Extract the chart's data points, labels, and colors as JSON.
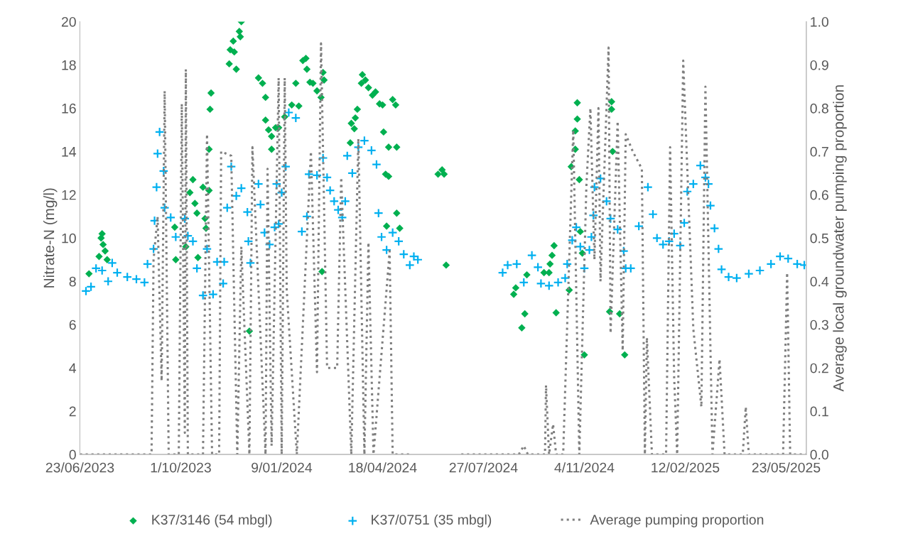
{
  "chart_data": {
    "type": "scatter",
    "ylabel": "Nitrate-N (mg/l)",
    "y2label": "Average local groundwater pumping proportion",
    "xlim": [
      "2023-06-23",
      "2025-06-12"
    ],
    "xticks": [
      {
        "value": "2023-06-23",
        "label": "23/06/2023"
      },
      {
        "value": "2023-10-01",
        "label": "1/10/2023"
      },
      {
        "value": "2024-01-09",
        "label": "9/01/2024"
      },
      {
        "value": "2024-04-18",
        "label": "18/04/2024"
      },
      {
        "value": "2024-07-27",
        "label": "27/07/2024"
      },
      {
        "value": "2024-11-04",
        "label": "4/11/2024"
      },
      {
        "value": "2025-02-12",
        "label": "12/02/2025"
      },
      {
        "value": "2025-05-23",
        "label": "23/05/2025"
      }
    ],
    "ylim": [
      0,
      20
    ],
    "yticks": [
      0,
      2,
      4,
      6,
      8,
      10,
      12,
      14,
      16,
      18,
      20
    ],
    "y2lim": [
      0,
      1
    ],
    "y2ticks": [
      {
        "value": 0,
        "label": "0.0"
      },
      {
        "value": 0.1,
        "label": "0.1"
      },
      {
        "value": 0.2,
        "label": "0.2"
      },
      {
        "value": 0.3,
        "label": "0.3"
      },
      {
        "value": 0.4,
        "label": "0.4"
      },
      {
        "value": 0.5,
        "label": "0.5"
      },
      {
        "value": 0.6,
        "label": "0.6"
      },
      {
        "value": 0.7,
        "label": "0.7"
      },
      {
        "value": 0.8,
        "label": "0.8"
      },
      {
        "value": 0.9,
        "label": "0.9"
      },
      {
        "value": 1.0,
        "label": "1.0"
      }
    ],
    "grid": false,
    "legend": "bottom",
    "series": [
      {
        "name": "K37/3146 (54 mbgl)",
        "marker": "diamond",
        "color": "#00b050",
        "x": [
          "2023-07-02",
          "2023-07-12",
          "2023-07-14",
          "2023-07-15",
          "2023-07-16",
          "2023-07-18",
          "2023-07-20",
          "2023-09-25",
          "2023-09-26",
          "2023-10-06",
          "2023-10-10",
          "2023-10-13",
          "2023-10-15",
          "2023-10-17",
          "2023-10-18",
          "2023-10-23",
          "2023-10-25",
          "2023-10-26",
          "2023-10-29",
          "2023-10-29",
          "2023-10-30",
          "2023-10-31",
          "2023-11-18",
          "2023-11-19",
          "2023-11-22",
          "2023-11-23",
          "2023-11-25",
          "2023-11-28",
          "2023-11-29",
          "2023-11-30",
          "2023-12-08",
          "2023-12-17",
          "2023-12-21",
          "2023-12-24",
          "2023-12-24",
          "2023-12-27",
          "2023-12-30",
          "2023-12-30",
          "2024-01-03",
          "2024-01-06",
          "2024-01-12",
          "2024-01-19",
          "2024-01-23",
          "2024-01-26",
          "2024-01-30",
          "2024-02-02",
          "2024-02-03",
          "2024-02-06",
          "2024-02-09",
          "2024-02-13",
          "2024-02-17",
          "2024-02-18",
          "2024-02-19",
          "2024-02-20",
          "2024-03-17",
          "2024-03-18",
          "2024-03-21",
          "2024-03-22",
          "2024-03-24",
          "2024-03-28",
          "2024-03-29",
          "2024-04-01",
          "2024-04-04",
          "2024-04-08",
          "2024-04-11",
          "2024-04-15",
          "2024-04-18",
          "2024-04-19",
          "2024-04-21",
          "2024-04-22",
          "2024-04-24",
          "2024-04-24",
          "2024-04-28",
          "2024-05-01",
          "2024-05-02",
          "2024-05-02",
          "2024-05-05",
          "2024-06-12",
          "2024-06-16",
          "2024-06-18",
          "2024-06-20",
          "2024-08-26",
          "2024-08-28",
          "2024-09-03",
          "2024-09-06",
          "2024-09-08",
          "2024-09-25",
          "2024-09-30",
          "2024-10-01",
          "2024-10-03",
          "2024-10-05",
          "2024-10-07",
          "2024-10-20",
          "2024-10-22",
          "2024-10-26",
          "2024-10-26",
          "2024-10-28",
          "2024-10-28",
          "2024-10-30",
          "2024-10-31",
          "2024-11-02",
          "2024-11-04",
          "2024-11-29",
          "2024-12-01",
          "2024-12-01",
          "2024-12-02",
          "2024-12-09",
          "2024-12-14"
        ],
        "values": [
          8.35,
          9.15,
          10.0,
          10.2,
          9.7,
          9.4,
          9.0,
          10.5,
          9.0,
          9.6,
          12.1,
          12.7,
          11.6,
          11.15,
          9.1,
          12.35,
          10.9,
          10.45,
          12.2,
          14.1,
          15.95,
          16.7,
          18.05,
          18.7,
          19.1,
          18.6,
          17.8,
          19.55,
          19.3,
          20.0,
          5.7,
          17.4,
          17.15,
          16.5,
          15.45,
          15.0,
          14.7,
          14.1,
          15.1,
          15.1,
          15.6,
          16.15,
          17.15,
          16.1,
          18.2,
          18.3,
          17.8,
          17.2,
          17.15,
          16.8,
          16.5,
          8.45,
          17.65,
          17.3,
          14.4,
          15.3,
          15.05,
          15.55,
          15.95,
          17.15,
          17.55,
          17.3,
          16.95,
          16.6,
          16.75,
          16.2,
          16.15,
          14.9,
          12.95,
          10.55,
          12.85,
          14.2,
          16.4,
          16.15,
          14.2,
          11.15,
          10.45,
          12.95,
          13.15,
          12.95,
          8.75,
          7.4,
          7.7,
          5.85,
          6.5,
          8.3,
          8.4,
          8.4,
          8.8,
          9.2,
          9.65,
          6.55,
          7.6,
          13.3,
          14.1,
          14.95,
          15.5,
          16.25,
          12.7,
          10.3,
          9.3,
          4.6,
          6.6,
          15.95,
          16.3,
          14.0,
          6.5,
          4.6
        ]
      },
      {
        "name": "K37/0751 (35 mbgl)",
        "marker": "cross",
        "color": "#00b0f0",
        "x": [
          "2023-06-29",
          "2023-07-04",
          "2023-07-09",
          "2023-07-15",
          "2023-07-21",
          "2023-07-25",
          "2023-07-30",
          "2023-08-09",
          "2023-08-18",
          "2023-08-26",
          "2023-08-29",
          "2023-09-04",
          "2023-09-05",
          "2023-09-07",
          "2023-09-08",
          "2023-09-10",
          "2023-09-14",
          "2023-09-15",
          "2023-09-21",
          "2023-09-26",
          "2023-10-05",
          "2023-10-08",
          "2023-10-13",
          "2023-10-17",
          "2023-10-23",
          "2023-10-27",
          "2023-11-02",
          "2023-11-06",
          "2023-11-12",
          "2023-11-13",
          "2023-11-16",
          "2023-11-20",
          "2023-11-25",
          "2023-11-30",
          "2023-12-06",
          "2023-12-07",
          "2023-12-09",
          "2023-12-17",
          "2023-12-19",
          "2023-12-23",
          "2023-12-28",
          "2024-01-02",
          "2024-01-04",
          "2024-01-06",
          "2024-01-09",
          "2024-01-13",
          "2024-01-16",
          "2024-01-23",
          "2024-01-29",
          "2024-02-03",
          "2024-02-05",
          "2024-02-13",
          "2024-02-19",
          "2024-02-23",
          "2024-02-26",
          "2024-03-01",
          "2024-03-05",
          "2024-03-09",
          "2024-03-12",
          "2024-03-14",
          "2024-03-19",
          "2024-03-25",
          "2024-03-31",
          "2024-04-07",
          "2024-04-12",
          "2024-04-14",
          "2024-04-17",
          "2024-04-22",
          "2024-04-28",
          "2024-05-04",
          "2024-05-09",
          "2024-05-15",
          "2024-05-19",
          "2024-05-23",
          "2024-08-15",
          "2024-08-20",
          "2024-08-29",
          "2024-09-05",
          "2024-09-13",
          "2024-09-19",
          "2024-09-22",
          "2024-09-30",
          "2024-10-09",
          "2024-10-16",
          "2024-10-18",
          "2024-10-23",
          "2024-10-27",
          "2024-10-31",
          "2024-11-04",
          "2024-11-09",
          "2024-11-11",
          "2024-11-13",
          "2024-11-14",
          "2024-11-20",
          "2024-11-26",
          "2024-11-30",
          "2024-12-07",
          "2024-12-13",
          "2024-12-15",
          "2024-12-20",
          "2024-12-28",
          "2025-01-06",
          "2025-01-11",
          "2025-01-15",
          "2025-01-21",
          "2025-01-27",
          "2025-02-01",
          "2025-02-07",
          "2025-02-11",
          "2025-02-14",
          "2025-02-20",
          "2025-02-27",
          "2025-03-04",
          "2025-03-07",
          "2025-03-09",
          "2025-03-13",
          "2025-03-17",
          "2025-03-20",
          "2025-03-27",
          "2025-04-04",
          "2025-04-16",
          "2025-04-27",
          "2025-05-08",
          "2025-05-17",
          "2025-05-25",
          "2025-06-03",
          "2025-06-10"
        ],
        "values": [
          7.55,
          7.75,
          8.6,
          8.5,
          8.0,
          8.85,
          8.4,
          8.2,
          8.1,
          7.95,
          8.8,
          9.5,
          10.8,
          12.35,
          13.9,
          14.9,
          13.1,
          11.4,
          10.95,
          10.05,
          10.9,
          10.1,
          9.85,
          8.6,
          7.35,
          9.5,
          7.4,
          8.9,
          7.9,
          8.9,
          11.4,
          13.3,
          11.95,
          12.3,
          11.2,
          9.85,
          8.85,
          12.5,
          11.55,
          10.25,
          9.7,
          10.5,
          12.5,
          10.65,
          12.1,
          13.3,
          15.8,
          15.55,
          10.3,
          11.0,
          12.95,
          12.9,
          13.7,
          12.8,
          12.2,
          11.7,
          11.3,
          10.95,
          11.7,
          13.8,
          13.0,
          14.2,
          14.5,
          14.05,
          13.4,
          11.15,
          10.05,
          9.45,
          10.25,
          9.85,
          9.25,
          8.75,
          9.15,
          9.0,
          8.4,
          8.75,
          8.8,
          7.95,
          9.2,
          8.65,
          7.9,
          7.8,
          7.95,
          8.15,
          8.8,
          9.9,
          10.5,
          9.6,
          8.6,
          9.45,
          10.05,
          11.05,
          12.35,
          12.75,
          11.7,
          10.9,
          10.4,
          9.4,
          8.6,
          8.6,
          10.55,
          12.35,
          11.1,
          10.0,
          9.7,
          9.85,
          10.2,
          9.65,
          10.7,
          12.15,
          12.5,
          13.35,
          12.8,
          12.5,
          11.5,
          10.45,
          9.5,
          8.55,
          8.2,
          8.15,
          8.35,
          8.5,
          8.8,
          9.15,
          9.05,
          8.8,
          8.75
        ]
      },
      {
        "name": "Average pumping proportion",
        "type": "line",
        "axis": "y2",
        "line_style": "dotted",
        "marker": "none",
        "color": "#7f7f7f",
        "x": [
          "2023-06-23",
          "2023-09-02",
          "2023-09-04",
          "2023-09-08",
          "2023-09-12",
          "2023-09-15",
          "2023-09-19",
          "2023-09-29",
          "2023-10-02",
          "2023-10-05",
          "2023-10-06",
          "2023-10-08",
          "2023-10-16",
          "2023-10-23",
          "2023-10-27",
          "2023-11-01",
          "2023-11-08",
          "2023-11-10",
          "2023-11-20",
          "2023-11-26",
          "2023-11-30",
          "2023-12-08",
          "2023-12-11",
          "2023-12-24",
          "2023-12-26",
          "2023-12-30",
          "2024-01-06",
          "2024-01-09",
          "2024-01-12",
          "2024-01-14",
          "2024-01-24",
          "2024-02-07",
          "2024-02-13",
          "2024-02-17",
          "2024-02-23",
          "2024-03-04",
          "2024-03-08",
          "2024-03-18",
          "2024-03-25",
          "2024-03-31",
          "2024-04-04",
          "2024-04-09",
          "2024-04-25",
          "2024-04-28",
          "2024-05-16",
          "2024-06-15",
          "2024-07-05",
          "2024-08-31",
          "2024-09-05",
          "2024-09-09",
          "2024-09-26",
          "2024-09-27",
          "2024-09-30",
          "2024-10-04",
          "2024-10-07",
          "2024-10-14",
          "2024-10-24",
          "2024-10-30",
          "2024-11-06",
          "2024-11-10",
          "2024-11-14",
          "2024-11-18",
          "2024-11-20",
          "2024-11-28",
          "2024-11-30",
          "2024-12-07",
          "2024-12-12",
          "2024-12-15",
          "2024-12-22",
          "2024-12-31",
          "2025-01-03",
          "2025-01-05",
          "2025-01-10",
          "2025-01-24",
          "2025-01-28",
          "2025-02-01",
          "2025-02-04",
          "2025-02-10",
          "2025-02-20",
          "2025-02-28",
          "2025-03-04",
          "2025-03-11",
          "2025-03-18",
          "2025-03-23",
          "2025-04-10",
          "2025-04-13",
          "2025-04-16",
          "2025-05-20",
          "2025-05-24",
          "2025-05-27",
          "2025-06-12"
        ],
        "values": [
          0,
          0,
          0.45,
          0.55,
          0.17,
          0.84,
          0,
          0,
          0.81,
          0.05,
          0.89,
          0,
          0,
          0,
          0.74,
          0,
          0,
          0.7,
          0.69,
          0,
          0.48,
          0,
          0.71,
          0,
          0.66,
          0.02,
          0.87,
          0,
          0.87,
          0.38,
          0,
          0.7,
          0.19,
          0.95,
          0.2,
          0.2,
          0.64,
          0,
          0.73,
          0,
          0.49,
          0,
          0.47,
          0,
          0,
          null,
          0,
          0,
          0.02,
          0,
          0,
          0.16,
          0,
          0.07,
          0,
          0,
          0.75,
          0,
          0.62,
          0.8,
          0.45,
          0.8,
          0.4,
          0.94,
          0.28,
          0.77,
          0.24,
          0.74,
          0.7,
          0.66,
          0,
          0.27,
          0,
          0,
          0.71,
          0.18,
          0,
          0.91,
          0.29,
          0.11,
          0.85,
          0,
          0.22,
          0,
          0,
          0.11,
          0,
          0,
          0.42,
          0,
          0
        ]
      }
    ]
  }
}
